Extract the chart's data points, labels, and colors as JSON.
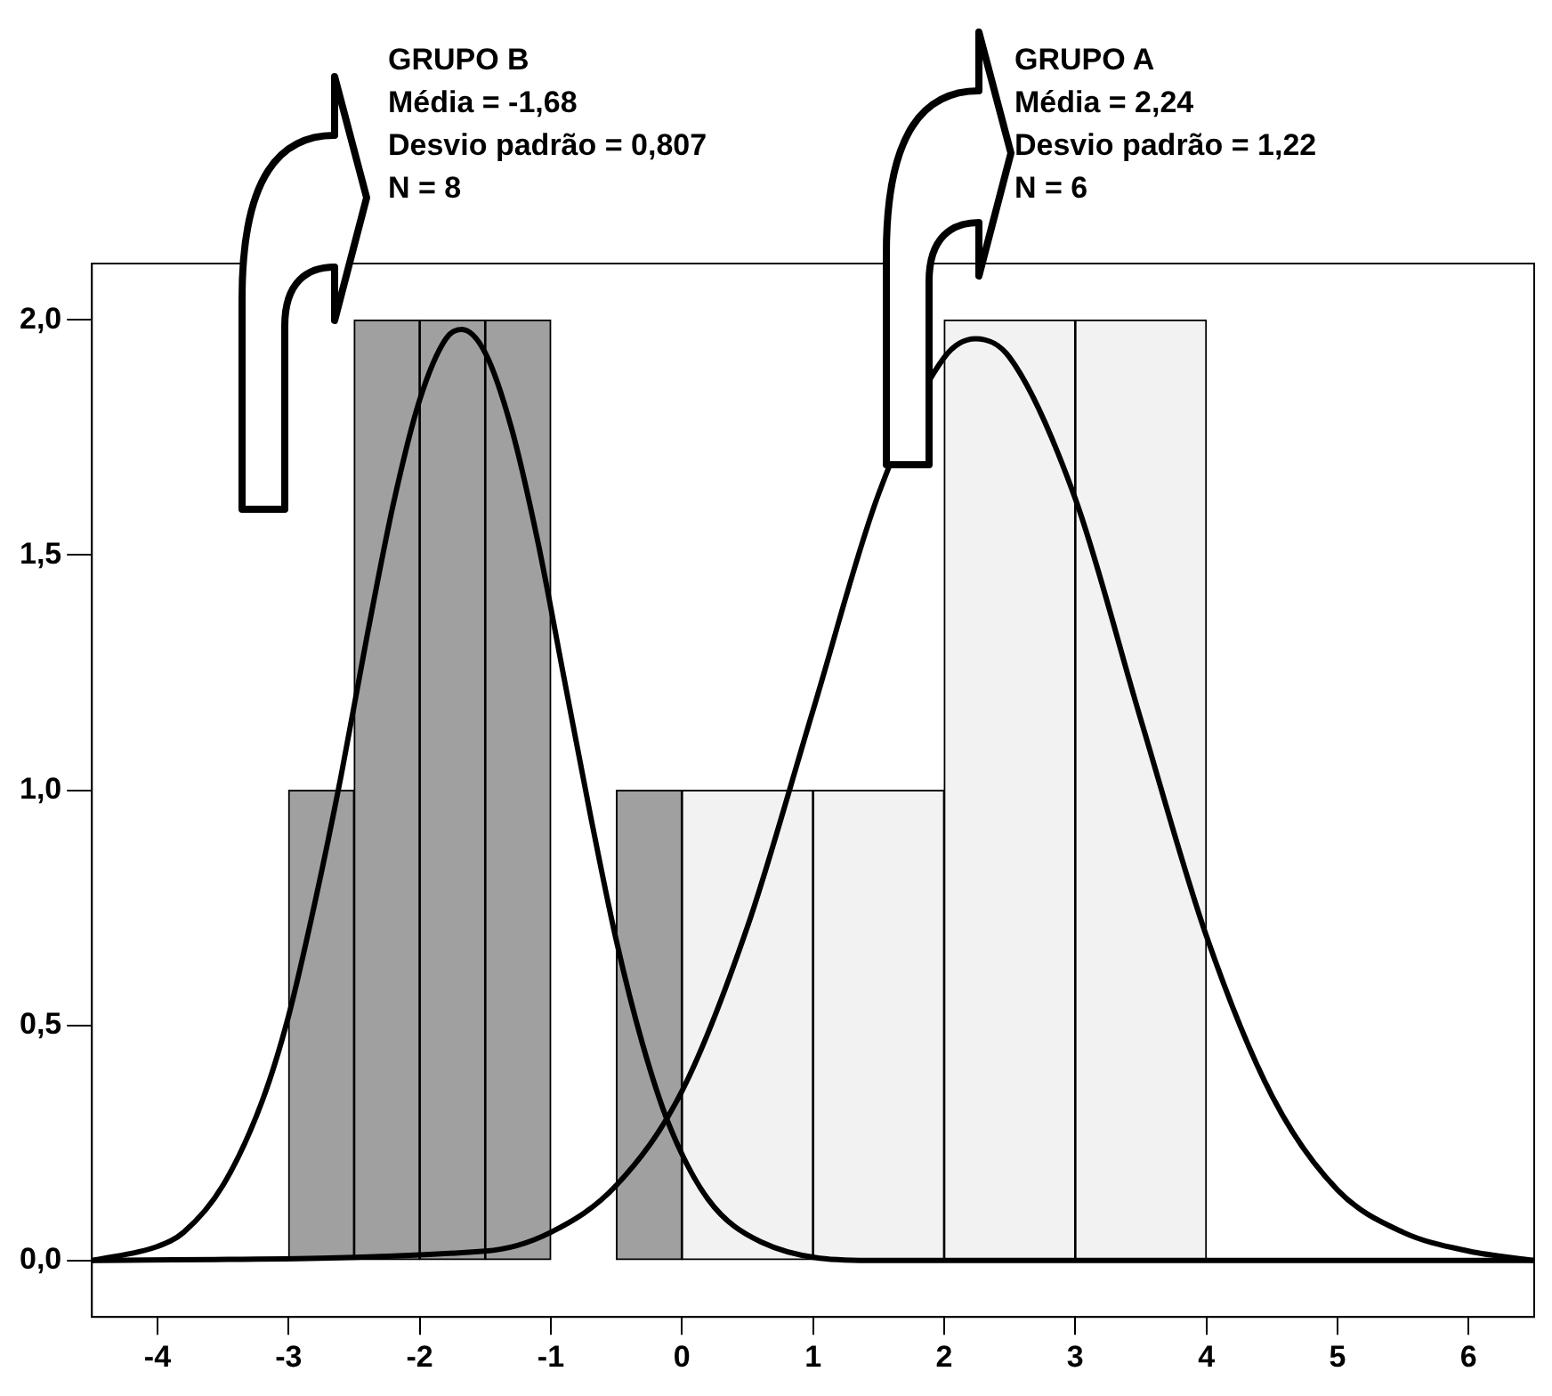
{
  "chart_data": {
    "type": "histogram",
    "annotations": [
      "GRUPO B\nMédia = -1,68\nDesvio padrão = 0,807\nN = 8",
      "GRUPO A\nMédia = 2,24\nDesvio padrão = 1,22\nN = 6"
    ],
    "xlim": [
      -4.5,
      6.5
    ],
    "xticks": [
      -4,
      -3,
      -2,
      -1,
      0,
      1,
      2,
      3,
      4,
      5,
      6
    ],
    "ylim": [
      -0.12,
      2.12
    ],
    "yticks": [
      {
        "value": 0,
        "label": "0,0"
      },
      {
        "value": 0.5,
        "label": "0,5"
      },
      {
        "value": 1,
        "label": "1,0"
      },
      {
        "value": 1.5,
        "label": "1,5"
      },
      {
        "value": 2,
        "label": "2,0"
      }
    ],
    "series": [
      {
        "color": "#a0a0a0",
        "bins": [
          -3,
          -2.5,
          -2,
          -1.5,
          -1,
          -0.5,
          0
        ],
        "values": [
          1,
          2,
          2,
          2,
          0,
          1
        ]
      },
      {
        "color": "#f2f2f2",
        "bins": [
          0,
          1,
          2,
          3,
          4
        ],
        "values": [
          1,
          1,
          2,
          2
        ]
      },
      {
        "type": "line",
        "color": "#000000",
        "x": [
          -4.5,
          -4,
          -3.8,
          -3.5,
          -3.2,
          -3,
          -2.8,
          -2.6,
          -2.4,
          -2.2,
          -2,
          -1.8,
          -1.68,
          -1.5,
          -1.3,
          -1.1,
          -0.9,
          -0.7,
          -0.5,
          -0.3,
          -0.1,
          0.2,
          0.6,
          1.5,
          6.5
        ],
        "values": [
          0,
          0.03,
          0.06,
          0.16,
          0.34,
          0.52,
          0.76,
          1.03,
          1.33,
          1.61,
          1.83,
          1.96,
          1.98,
          1.93,
          1.77,
          1.53,
          1.24,
          0.95,
          0.68,
          0.46,
          0.29,
          0.13,
          0.04,
          0,
          0
        ]
      },
      {
        "type": "line",
        "color": "#000000",
        "x": [
          -4.5,
          -1.5,
          -1,
          -0.5,
          0,
          0.5,
          1,
          1.5,
          2,
          2.24,
          2.5,
          3,
          3.5,
          4,
          4.5,
          5,
          5.5,
          6,
          6.5
        ],
        "values": [
          0,
          0.02,
          0.06,
          0.16,
          0.36,
          0.71,
          1.17,
          1.63,
          1.92,
          1.96,
          1.92,
          1.62,
          1.15,
          0.69,
          0.35,
          0.15,
          0.06,
          0.02,
          0
        ]
      }
    ]
  }
}
